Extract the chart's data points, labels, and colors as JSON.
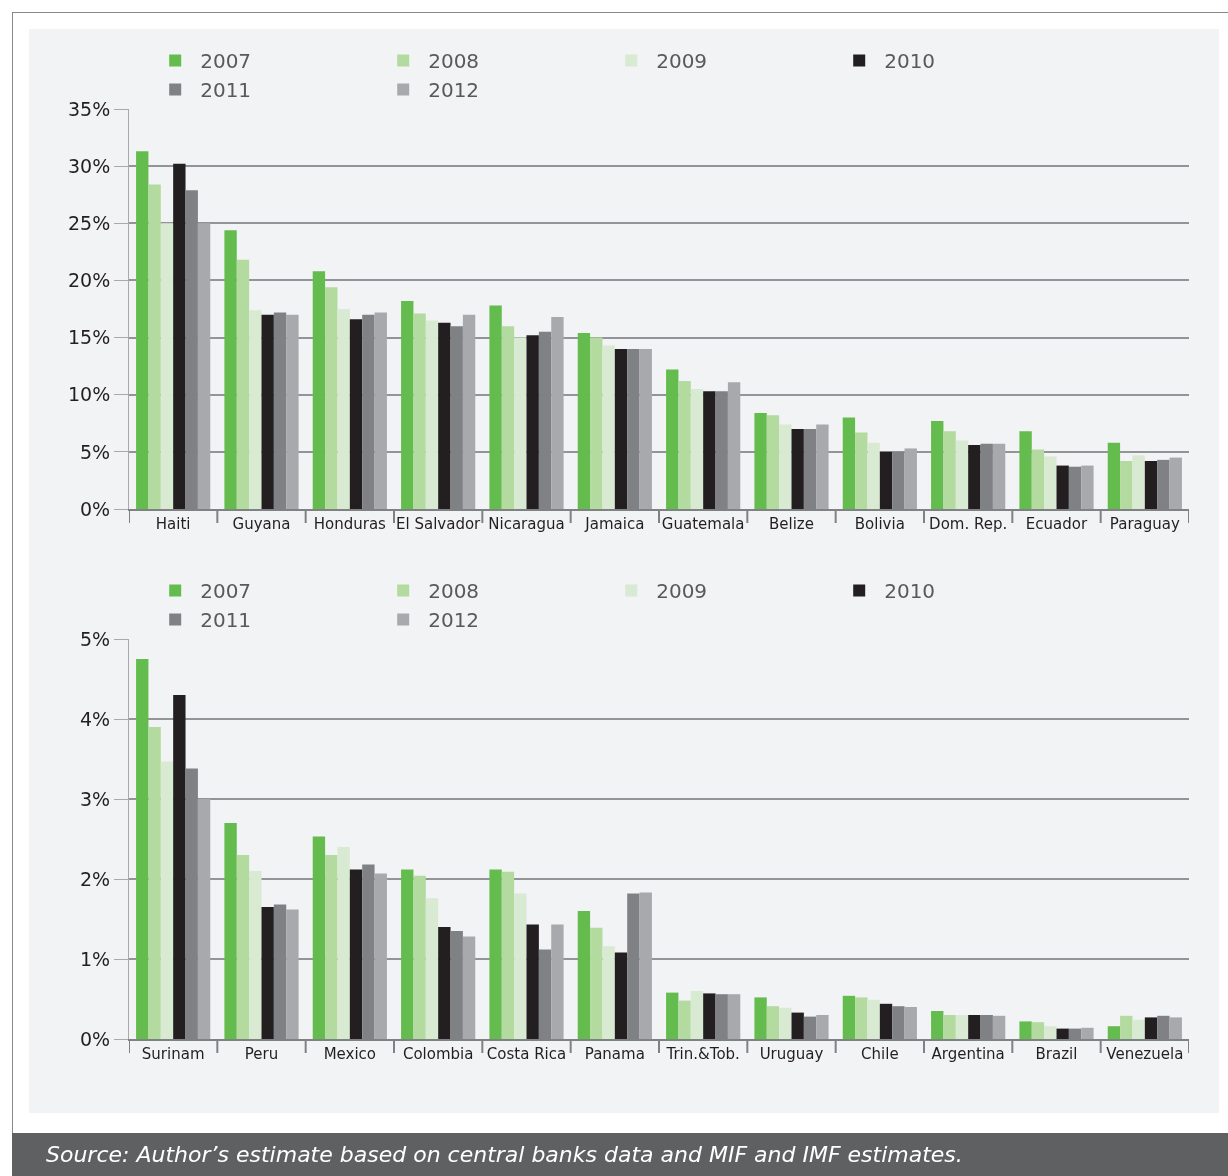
{
  "chart_data": [
    {
      "type": "bar",
      "categories": [
        "Haiti",
        "Guyana",
        "Honduras",
        "El Salvador",
        "Nicaragua",
        "Jamaica",
        "Guatemala",
        "Belize",
        "Bolivia",
        "Dom. Rep.",
        "Ecuador",
        "Paraguay"
      ],
      "series": [
        {
          "name": "2007",
          "color": "#65bc4e",
          "values": [
            31.3,
            24.4,
            20.8,
            18.2,
            17.8,
            15.4,
            12.2,
            8.4,
            8.0,
            7.7,
            6.8,
            5.8
          ]
        },
        {
          "name": "2008",
          "color": "#b3da9f",
          "values": [
            28.4,
            21.8,
            19.4,
            17.1,
            16.0,
            15.0,
            11.2,
            8.2,
            6.7,
            6.8,
            5.2,
            4.2
          ]
        },
        {
          "name": "2009",
          "color": "#d9ead2",
          "values": [
            25.0,
            17.4,
            17.5,
            16.5,
            15.0,
            14.3,
            10.5,
            7.4,
            5.8,
            6.0,
            4.6,
            4.7
          ]
        },
        {
          "name": "2010",
          "color": "#231f20",
          "values": [
            30.2,
            17.0,
            16.6,
            16.3,
            15.2,
            14.0,
            10.3,
            7.0,
            5.0,
            5.6,
            3.8,
            4.2
          ]
        },
        {
          "name": "2011",
          "color": "#808184",
          "values": [
            27.9,
            17.2,
            17.0,
            16.0,
            15.5,
            14.0,
            10.3,
            7.0,
            5.0,
            5.7,
            3.7,
            4.3
          ]
        },
        {
          "name": "2012",
          "color": "#a7a9ac",
          "values": [
            25.0,
            17.0,
            17.2,
            17.0,
            16.8,
            14.0,
            11.1,
            7.4,
            5.3,
            5.7,
            3.8,
            4.5
          ]
        }
      ],
      "ylim": [
        0,
        35
      ],
      "yticks": [
        {
          "value": 0,
          "label": "0%"
        },
        {
          "value": 5,
          "label": "5%"
        },
        {
          "value": 10,
          "label": "10%"
        },
        {
          "value": 15,
          "label": "15%"
        },
        {
          "value": 20,
          "label": "20%"
        },
        {
          "value": 25,
          "label": "25%"
        },
        {
          "value": 30,
          "label": "30%"
        },
        {
          "value": 35,
          "label": "35%"
        }
      ],
      "grid": "y",
      "legend": "top"
    },
    {
      "type": "bar",
      "categories": [
        "Surinam",
        "Peru",
        "Mexico",
        "Colombia",
        "Costa Rica",
        "Panama",
        "Trin.&Tob.",
        "Uruguay",
        "Chile",
        "Argentina",
        "Brazil",
        "Venezuela"
      ],
      "series": [
        {
          "name": "2007",
          "color": "#65bc4e",
          "values": [
            4.75,
            2.7,
            2.53,
            2.12,
            2.12,
            1.6,
            0.58,
            0.52,
            0.54,
            0.35,
            0.22,
            0.16
          ]
        },
        {
          "name": "2008",
          "color": "#b3da9f",
          "values": [
            3.9,
            2.3,
            2.3,
            2.04,
            2.09,
            1.39,
            0.48,
            0.41,
            0.52,
            0.3,
            0.21,
            0.29
          ]
        },
        {
          "name": "2009",
          "color": "#d9ead2",
          "values": [
            3.47,
            2.1,
            2.4,
            1.76,
            1.82,
            1.16,
            0.6,
            0.39,
            0.49,
            0.3,
            0.16,
            0.24
          ]
        },
        {
          "name": "2010",
          "color": "#231f20",
          "values": [
            4.3,
            1.65,
            2.12,
            1.4,
            1.43,
            1.08,
            0.57,
            0.33,
            0.44,
            0.3,
            0.13,
            0.27
          ]
        },
        {
          "name": "2011",
          "color": "#808184",
          "values": [
            3.38,
            1.68,
            2.18,
            1.35,
            1.12,
            1.82,
            0.56,
            0.28,
            0.41,
            0.3,
            0.13,
            0.29
          ]
        },
        {
          "name": "2012",
          "color": "#a7a9ac",
          "values": [
            3.0,
            1.62,
            2.07,
            1.28,
            1.43,
            1.83,
            0.56,
            0.3,
            0.4,
            0.29,
            0.14,
            0.27
          ]
        }
      ],
      "ylim": [
        0,
        5
      ],
      "yticks": [
        {
          "value": 0,
          "label": "0%"
        },
        {
          "value": 1,
          "label": "1%"
        },
        {
          "value": 2,
          "label": "2%"
        },
        {
          "value": 3,
          "label": "3%"
        },
        {
          "value": 4,
          "label": "4%"
        },
        {
          "value": 5,
          "label": "5%"
        }
      ],
      "grid": "y",
      "legend": "top",
      "annotations": [
        "Source: Author’s estimate based on central banks data and MIF and IMF estimates."
      ]
    }
  ]
}
